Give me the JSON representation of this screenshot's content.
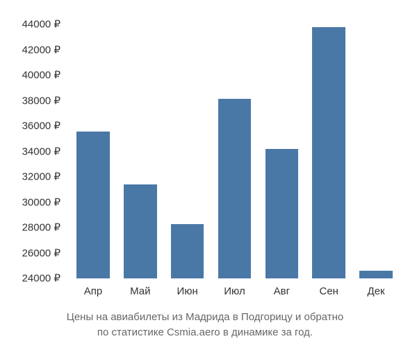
{
  "chart": {
    "type": "bar",
    "background_color": "#ffffff",
    "bar_color": "#4a78a6",
    "text_color": "#333333",
    "caption_color": "#666666",
    "axis_fontsize": 15,
    "caption_fontsize": 15,
    "bar_width": 0.7,
    "y_min": 24000,
    "y_max": 44000,
    "y_tick_step": 2000,
    "y_suffix": " ₽",
    "y_ticks": [
      44000,
      42000,
      40000,
      38000,
      36000,
      34000,
      32000,
      30000,
      28000,
      26000,
      24000
    ],
    "categories": [
      "Апр",
      "Май",
      "Июн",
      "Июл",
      "Авг",
      "Сен",
      "Дек"
    ],
    "values": [
      35100,
      31100,
      28100,
      37600,
      33800,
      43000,
      24600
    ],
    "caption_line1": "Цены на авиабилеты из Мадрида в Подгорицу и обратно",
    "caption_line2": "по статистике Csmia.aero в динамике за год."
  }
}
